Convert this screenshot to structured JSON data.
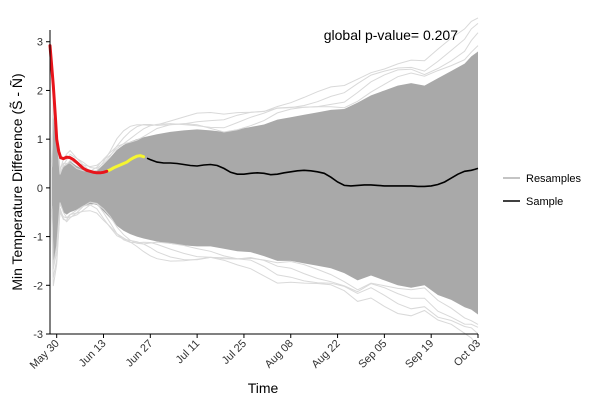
{
  "chart_data": {
    "type": "line",
    "title": "global p-value= 0.207",
    "xlabel": "Time",
    "ylabel": "Min Temperature Difference (S̃ - Ñ)",
    "x_ticks": [
      "May 30",
      "Jun 13",
      "Jun 27",
      "Jul 11",
      "Jul 25",
      "Aug 08",
      "Aug 22",
      "Sep 05",
      "Sep 19",
      "Oct 03"
    ],
    "x_start": "May 28",
    "x_end": "Oct 03",
    "ylim": [
      -3,
      3.2
    ],
    "y_ticks": [
      -3,
      -2,
      -1,
      0,
      1,
      2,
      3
    ],
    "grid": false,
    "legend_position": "right",
    "colors": {
      "resamples_band": "#a9a9a9",
      "resamples_line": "#b0b0b0",
      "sample": "#000000",
      "highlight_red": "#e8141b",
      "highlight_yellow": "#f5f530",
      "axis": "#000000"
    },
    "series": [
      {
        "name": "Sample",
        "color": "#000000",
        "x_days_from_may30": [
          -2,
          -1.6,
          -1,
          -0.4,
          0,
          0.6,
          1.2,
          2,
          3,
          4,
          5,
          6,
          7,
          8,
          9,
          10,
          11,
          12,
          13,
          14,
          15,
          16,
          17,
          18,
          19,
          20,
          21,
          22,
          23,
          24,
          25,
          26,
          27,
          28,
          30,
          32,
          34,
          36,
          38,
          40,
          42,
          44,
          46,
          48,
          50,
          52,
          54,
          56,
          58,
          60,
          62,
          64,
          66,
          68,
          70,
          72,
          74,
          76,
          78,
          80,
          82,
          84,
          86,
          88,
          90,
          92,
          94,
          96,
          98,
          100,
          102,
          104,
          106,
          108,
          110,
          112,
          114,
          116,
          118,
          120,
          122,
          124,
          125,
          126
        ],
        "values": [
          2.92,
          2.6,
          2.1,
          1.45,
          1.0,
          0.75,
          0.62,
          0.6,
          0.63,
          0.62,
          0.58,
          0.52,
          0.46,
          0.4,
          0.36,
          0.34,
          0.32,
          0.31,
          0.31,
          0.32,
          0.34,
          0.37,
          0.41,
          0.44,
          0.47,
          0.5,
          0.53,
          0.58,
          0.62,
          0.65,
          0.66,
          0.64,
          0.61,
          0.58,
          0.53,
          0.51,
          0.51,
          0.5,
          0.48,
          0.46,
          0.45,
          0.47,
          0.48,
          0.46,
          0.4,
          0.32,
          0.28,
          0.28,
          0.3,
          0.31,
          0.3,
          0.27,
          0.28,
          0.31,
          0.33,
          0.35,
          0.36,
          0.35,
          0.33,
          0.3,
          0.22,
          0.12,
          0.05,
          0.04,
          0.05,
          0.06,
          0.06,
          0.05,
          0.04,
          0.04,
          0.04,
          0.04,
          0.04,
          0.03,
          0.03,
          0.04,
          0.07,
          0.12,
          0.2,
          0.28,
          0.34,
          0.36,
          0.38,
          0.4
        ],
        "red_segment_until_day": 15,
        "yellow_segment_until_day": 26
      },
      {
        "name": "Resamples",
        "color": "#b0b0b0",
        "envelope_x_days_from_may30": [
          -1.5,
          -1,
          0,
          1,
          2,
          3,
          4,
          6,
          8,
          10,
          12,
          14,
          16,
          18,
          20,
          22,
          24,
          26,
          28,
          30,
          34,
          38,
          42,
          46,
          50,
          54,
          58,
          62,
          66,
          70,
          74,
          78,
          82,
          86,
          90,
          94,
          98,
          102,
          106,
          110,
          114,
          118,
          122,
          124,
          126
        ],
        "envelope_upper": [
          0.4,
          1.5,
          1.0,
          0.3,
          0.45,
          0.5,
          0.55,
          0.45,
          0.38,
          0.32,
          0.35,
          0.48,
          0.62,
          0.78,
          0.88,
          0.95,
          1.0,
          1.04,
          1.07,
          1.1,
          1.15,
          1.18,
          1.2,
          1.18,
          1.15,
          1.2,
          1.25,
          1.3,
          1.4,
          1.45,
          1.5,
          1.55,
          1.6,
          1.62,
          1.75,
          1.9,
          2.0,
          2.1,
          2.15,
          2.1,
          2.25,
          2.4,
          2.55,
          2.7,
          2.8
        ],
        "envelope_lower": [
          -0.4,
          -1.55,
          -1.2,
          -0.35,
          -0.5,
          -0.55,
          -0.5,
          -0.45,
          -0.38,
          -0.33,
          -0.35,
          -0.48,
          -0.62,
          -0.78,
          -0.88,
          -0.95,
          -1.0,
          -1.04,
          -1.07,
          -1.1,
          -1.15,
          -1.18,
          -1.2,
          -1.2,
          -1.25,
          -1.3,
          -1.32,
          -1.4,
          -1.5,
          -1.5,
          -1.55,
          -1.6,
          -1.65,
          -1.75,
          -1.9,
          -1.8,
          -1.9,
          -2.0,
          -2.05,
          -2.0,
          -2.2,
          -2.3,
          -2.45,
          -2.5,
          -2.6
        ]
      }
    ],
    "legend": [
      {
        "label": "Resamples",
        "color": "#b0b0b0"
      },
      {
        "label": "Sample",
        "color": "#000000"
      }
    ]
  }
}
